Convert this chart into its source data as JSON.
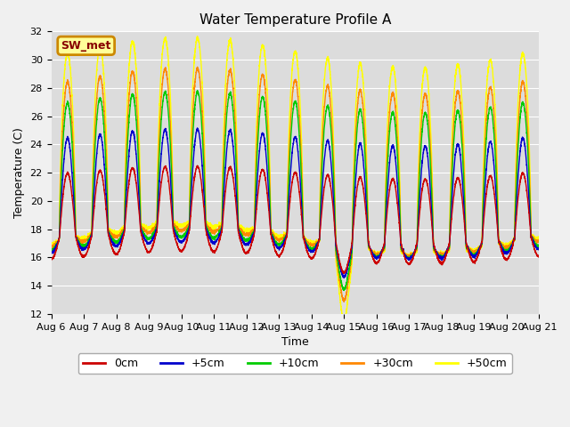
{
  "title": "Water Temperature Profile A",
  "xlabel": "Time",
  "ylabel": "Temperature (C)",
  "ylim": [
    12,
    32
  ],
  "xlim_days": [
    0,
    15
  ],
  "xtick_labels": [
    "Aug 6",
    "Aug 7",
    "Aug 8",
    "Aug 9",
    "Aug 10",
    "Aug 11",
    "Aug 12",
    "Aug 13",
    "Aug 14",
    "Aug 15",
    "Aug 16",
    "Aug 17",
    "Aug 18",
    "Aug 19",
    "Aug 20",
    "Aug 21"
  ],
  "colors": {
    "0cm": "#cc0000",
    "+5cm": "#0000cc",
    "+10cm": "#00cc00",
    "+30cm": "#ff8800",
    "+50cm": "#ffff00"
  },
  "legend_label": "SW_met",
  "legend_text_color": "#880000",
  "legend_box_facecolor": "#ffff99",
  "legend_box_edgecolor": "#cc8800",
  "background_color": "#e8e8e8",
  "plot_bg_color": "#dcdcdc",
  "grid_color": "#ffffff",
  "linewidth": 1.0,
  "title_fontsize": 11,
  "axis_fontsize": 9,
  "tick_fontsize": 8
}
